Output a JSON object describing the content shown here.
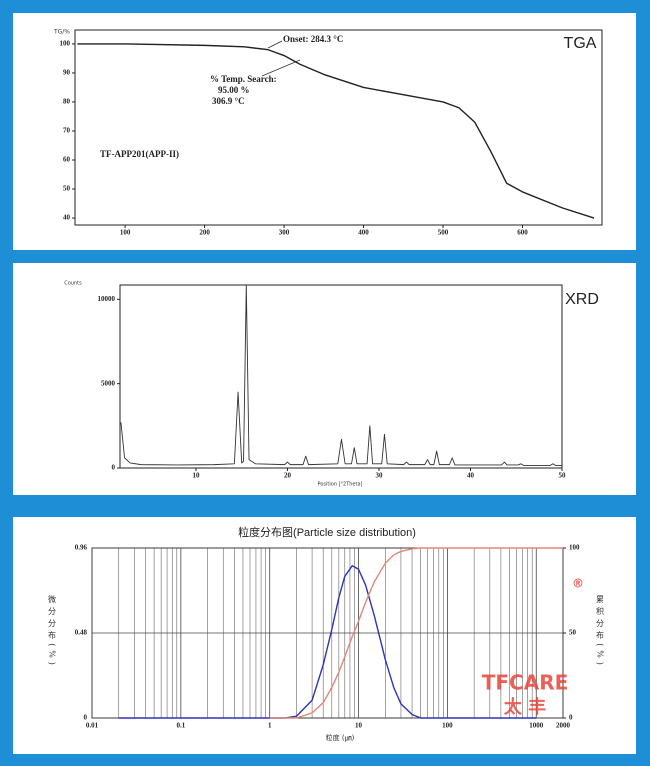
{
  "chart_data": [
    {
      "type": "line",
      "title": "TGA",
      "ylabel": "TG/%",
      "annotations": [
        "Onset: 284.3 °C",
        "% Temp. Search:",
        "95.00 %",
        "306.9 °C",
        "TF-APP201(APP-II)"
      ],
      "x": [
        40,
        100,
        200,
        250,
        280,
        300,
        320,
        350,
        400,
        450,
        500,
        520,
        540,
        560,
        580,
        600,
        650,
        690
      ],
      "series": [
        {
          "name": "TG",
          "color": "#222222",
          "values": [
            100,
            100,
            99.5,
            99,
            98,
            96,
            93,
            89.5,
            85,
            82.5,
            80,
            78,
            73,
            63,
            52,
            49,
            43.5,
            40
          ]
        }
      ],
      "xlim": [
        37,
        700
      ],
      "ylim": [
        37.6,
        104.8
      ],
      "xticks": [
        100,
        200,
        300,
        400,
        500,
        600
      ],
      "yticks": [
        40,
        50,
        60,
        70,
        80,
        90,
        100
      ],
      "grid": false
    },
    {
      "type": "line",
      "title": "XRD",
      "ylabel": "Counts",
      "xlabel": "Position [°2Theta]",
      "x": [
        1.8,
        2.2,
        2.8,
        4,
        8,
        12,
        14.2,
        14.6,
        15.0,
        15.2,
        15.5,
        15.8,
        16.5,
        19.7,
        20.0,
        20.3,
        21.7,
        22.0,
        22.3,
        25.5,
        25.9,
        26.3,
        27.0,
        27.3,
        27.6,
        28.7,
        29.0,
        29.3,
        30.3,
        30.6,
        30.9,
        32.7,
        33.0,
        33.3,
        35.0,
        35.3,
        35.6,
        36.0,
        36.3,
        36.6,
        37.7,
        38.0,
        38.3,
        43.4,
        43.7,
        44.0,
        45.2,
        45.5,
        45.8,
        48.7,
        49.0,
        49.3,
        50
      ],
      "series": [
        {
          "name": "Counts",
          "color": "#333333",
          "values": [
            2700,
            600,
            300,
            200,
            180,
            200,
            250,
            4500,
            300,
            400,
            10850,
            500,
            250,
            200,
            350,
            200,
            200,
            700,
            200,
            250,
            1700,
            250,
            250,
            1200,
            250,
            250,
            2500,
            250,
            250,
            2000,
            250,
            200,
            350,
            200,
            200,
            500,
            200,
            200,
            1000,
            200,
            200,
            600,
            180,
            180,
            350,
            180,
            180,
            250,
            150,
            150,
            250,
            150,
            150
          ]
        }
      ],
      "xlim": [
        1.7,
        50
      ],
      "ylim": [
        0,
        10850
      ],
      "xticks": [
        10,
        20,
        30,
        40,
        50
      ],
      "yticks": [
        0,
        5000,
        10000
      ],
      "grid": false
    },
    {
      "type": "line",
      "title": "粒度分布图(Particle size distribution)",
      "xlabel": "粒度 (㎛)",
      "ylabel": "微分分布(%)",
      "y2label": "累积分布(%)",
      "annotations": [
        "TFCARE",
        "太 丰",
        "®"
      ],
      "log_x": true,
      "x": [
        0.02,
        1,
        1.5,
        2,
        3,
        4,
        5,
        6,
        7,
        8.5,
        10,
        12,
        15,
        20,
        25,
        30,
        40,
        50,
        70,
        100,
        200,
        500,
        1000,
        2000
      ],
      "series": [
        {
          "name": "微分分布",
          "color": "#2b35b5",
          "values": [
            0,
            0,
            0,
            0.01,
            0.1,
            0.3,
            0.5,
            0.68,
            0.8,
            0.86,
            0.84,
            0.75,
            0.58,
            0.33,
            0.17,
            0.08,
            0.02,
            0,
            0,
            0,
            0,
            0,
            0,
            null
          ]
        },
        {
          "name": "累积分布",
          "color": "#e08878",
          "axis": "y2",
          "values": [
            null,
            0,
            0,
            0,
            3,
            9,
            18,
            27,
            36,
            48,
            57,
            68,
            80,
            91,
            96,
            98,
            99.5,
            100,
            100,
            100,
            100,
            100,
            100,
            100
          ]
        }
      ],
      "xlim": [
        0.01,
        2000
      ],
      "ylim": [
        0,
        0.96
      ],
      "y2lim": [
        0,
        100
      ],
      "xticks": [
        0.01,
        0.1,
        1,
        10,
        100,
        1000,
        2000
      ],
      "yticks": [
        0,
        0.48,
        0.96
      ],
      "y2ticks": [
        0,
        50,
        100
      ],
      "grid": true
    }
  ]
}
